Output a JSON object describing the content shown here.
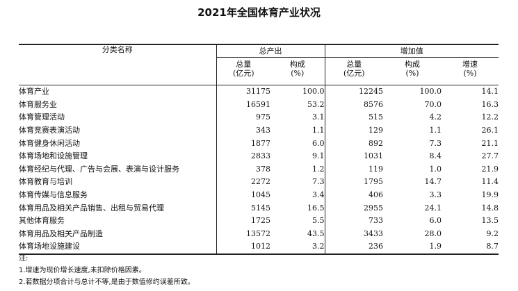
{
  "title": "2021年全国体育产业状况",
  "header": {
    "category": "分类名称",
    "group_output": "总产出",
    "group_added": "增加值",
    "sub": [
      {
        "l1": "总量",
        "l2": "(亿元)"
      },
      {
        "l1": "构成",
        "l2": "(%)"
      },
      {
        "l1": "总量",
        "l2": "(亿元)"
      },
      {
        "l1": "构成",
        "l2": "(%)"
      },
      {
        "l1": "增速",
        "l2": "(%)"
      }
    ]
  },
  "rows": [
    {
      "name": "体育产业",
      "level": 0,
      "out_total": "31175",
      "out_share": "100.0",
      "add_total": "12245",
      "add_share": "100.0",
      "growth": "14.1"
    },
    {
      "name": "体育服务业",
      "level": 1,
      "out_total": "16591",
      "out_share": "53.2",
      "add_total": "8576",
      "add_share": "70.0",
      "growth": "16.3"
    },
    {
      "name": "体育管理活动",
      "level": 2,
      "out_total": "975",
      "out_share": "3.1",
      "add_total": "515",
      "add_share": "4.2",
      "growth": "12.2"
    },
    {
      "name": "体育竞赛表演活动",
      "level": 2,
      "out_total": "343",
      "out_share": "1.1",
      "add_total": "129",
      "add_share": "1.1",
      "growth": "26.1"
    },
    {
      "name": "体育健身休闲活动",
      "level": 2,
      "out_total": "1877",
      "out_share": "6.0",
      "add_total": "892",
      "add_share": "7.3",
      "growth": "21.1"
    },
    {
      "name": "体育场地和设施管理",
      "level": 2,
      "out_total": "2833",
      "out_share": "9.1",
      "add_total": "1031",
      "add_share": "8.4",
      "growth": "27.7"
    },
    {
      "name": "体育经纪与代理、广告与会展、表演与设计服务",
      "level": 2,
      "out_total": "378",
      "out_share": "1.2",
      "add_total": "119",
      "add_share": "1.0",
      "growth": "21.9"
    },
    {
      "name": "体育教育与培训",
      "level": 2,
      "out_total": "2272",
      "out_share": "7.3",
      "add_total": "1795",
      "add_share": "14.7",
      "growth": "11.4"
    },
    {
      "name": "体育传媒与信息服务",
      "level": 2,
      "out_total": "1045",
      "out_share": "3.4",
      "add_total": "406",
      "add_share": "3.3",
      "growth": "19.9"
    },
    {
      "name": "体育用品及相关产品销售、出租与贸易代理",
      "level": 2,
      "out_total": "5145",
      "out_share": "16.5",
      "add_total": "2955",
      "add_share": "24.1",
      "growth": "14.8"
    },
    {
      "name": "其他体育服务",
      "level": 2,
      "out_total": "1725",
      "out_share": "5.5",
      "add_total": "733",
      "add_share": "6.0",
      "growth": "13.5"
    },
    {
      "name": "体育用品及相关产品制造",
      "level": 1,
      "out_total": "13572",
      "out_share": "43.5",
      "add_total": "3433",
      "add_share": "28.0",
      "growth": "9.2"
    },
    {
      "name": "体育场地设施建设",
      "level": 1,
      "out_total": "1012",
      "out_share": "3.2",
      "add_total": "236",
      "add_share": "1.9",
      "growth": "8.7"
    }
  ],
  "notes": [
    "注:",
    "1.增速为现价增长速度,未扣除价格因素。",
    "2.若数据分项合计与总计不等,是由于数值修约误差所致。"
  ]
}
